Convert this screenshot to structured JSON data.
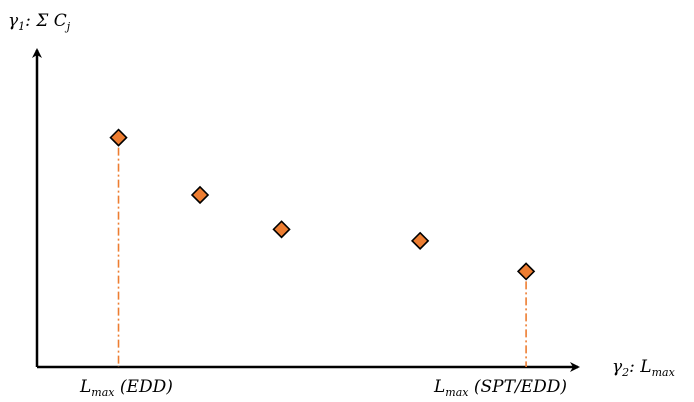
{
  "chart_data": {
    "type": "scatter",
    "ylabel": {
      "main": "γ",
      "sub": "1",
      "rest": ": Σ C",
      "sub2": "j"
    },
    "xlabel": {
      "main": "γ",
      "sub": "2",
      "rest": ": L",
      "sub2": "max"
    },
    "points": [
      {
        "x": 1.0,
        "y": 6.0
      },
      {
        "x": 2.0,
        "y": 4.5
      },
      {
        "x": 3.0,
        "y": 3.6
      },
      {
        "x": 4.7,
        "y": 3.3
      },
      {
        "x": 6.0,
        "y": 2.5
      }
    ],
    "xlim": [
      0,
      6.6
    ],
    "ylim": [
      0,
      8.5
    ],
    "grid": false,
    "marker": "diamond",
    "marker_color": "#ED7D31",
    "dropline_color": "#ED7D31",
    "droplines_at_points": [
      0,
      4
    ],
    "annotations": [
      {
        "point": 0,
        "main": "L",
        "sub": "max",
        "rest": " (EDD)"
      },
      {
        "point": 4,
        "main": "L",
        "sub": "max",
        "rest": " (SPT/EDD)"
      }
    ]
  }
}
